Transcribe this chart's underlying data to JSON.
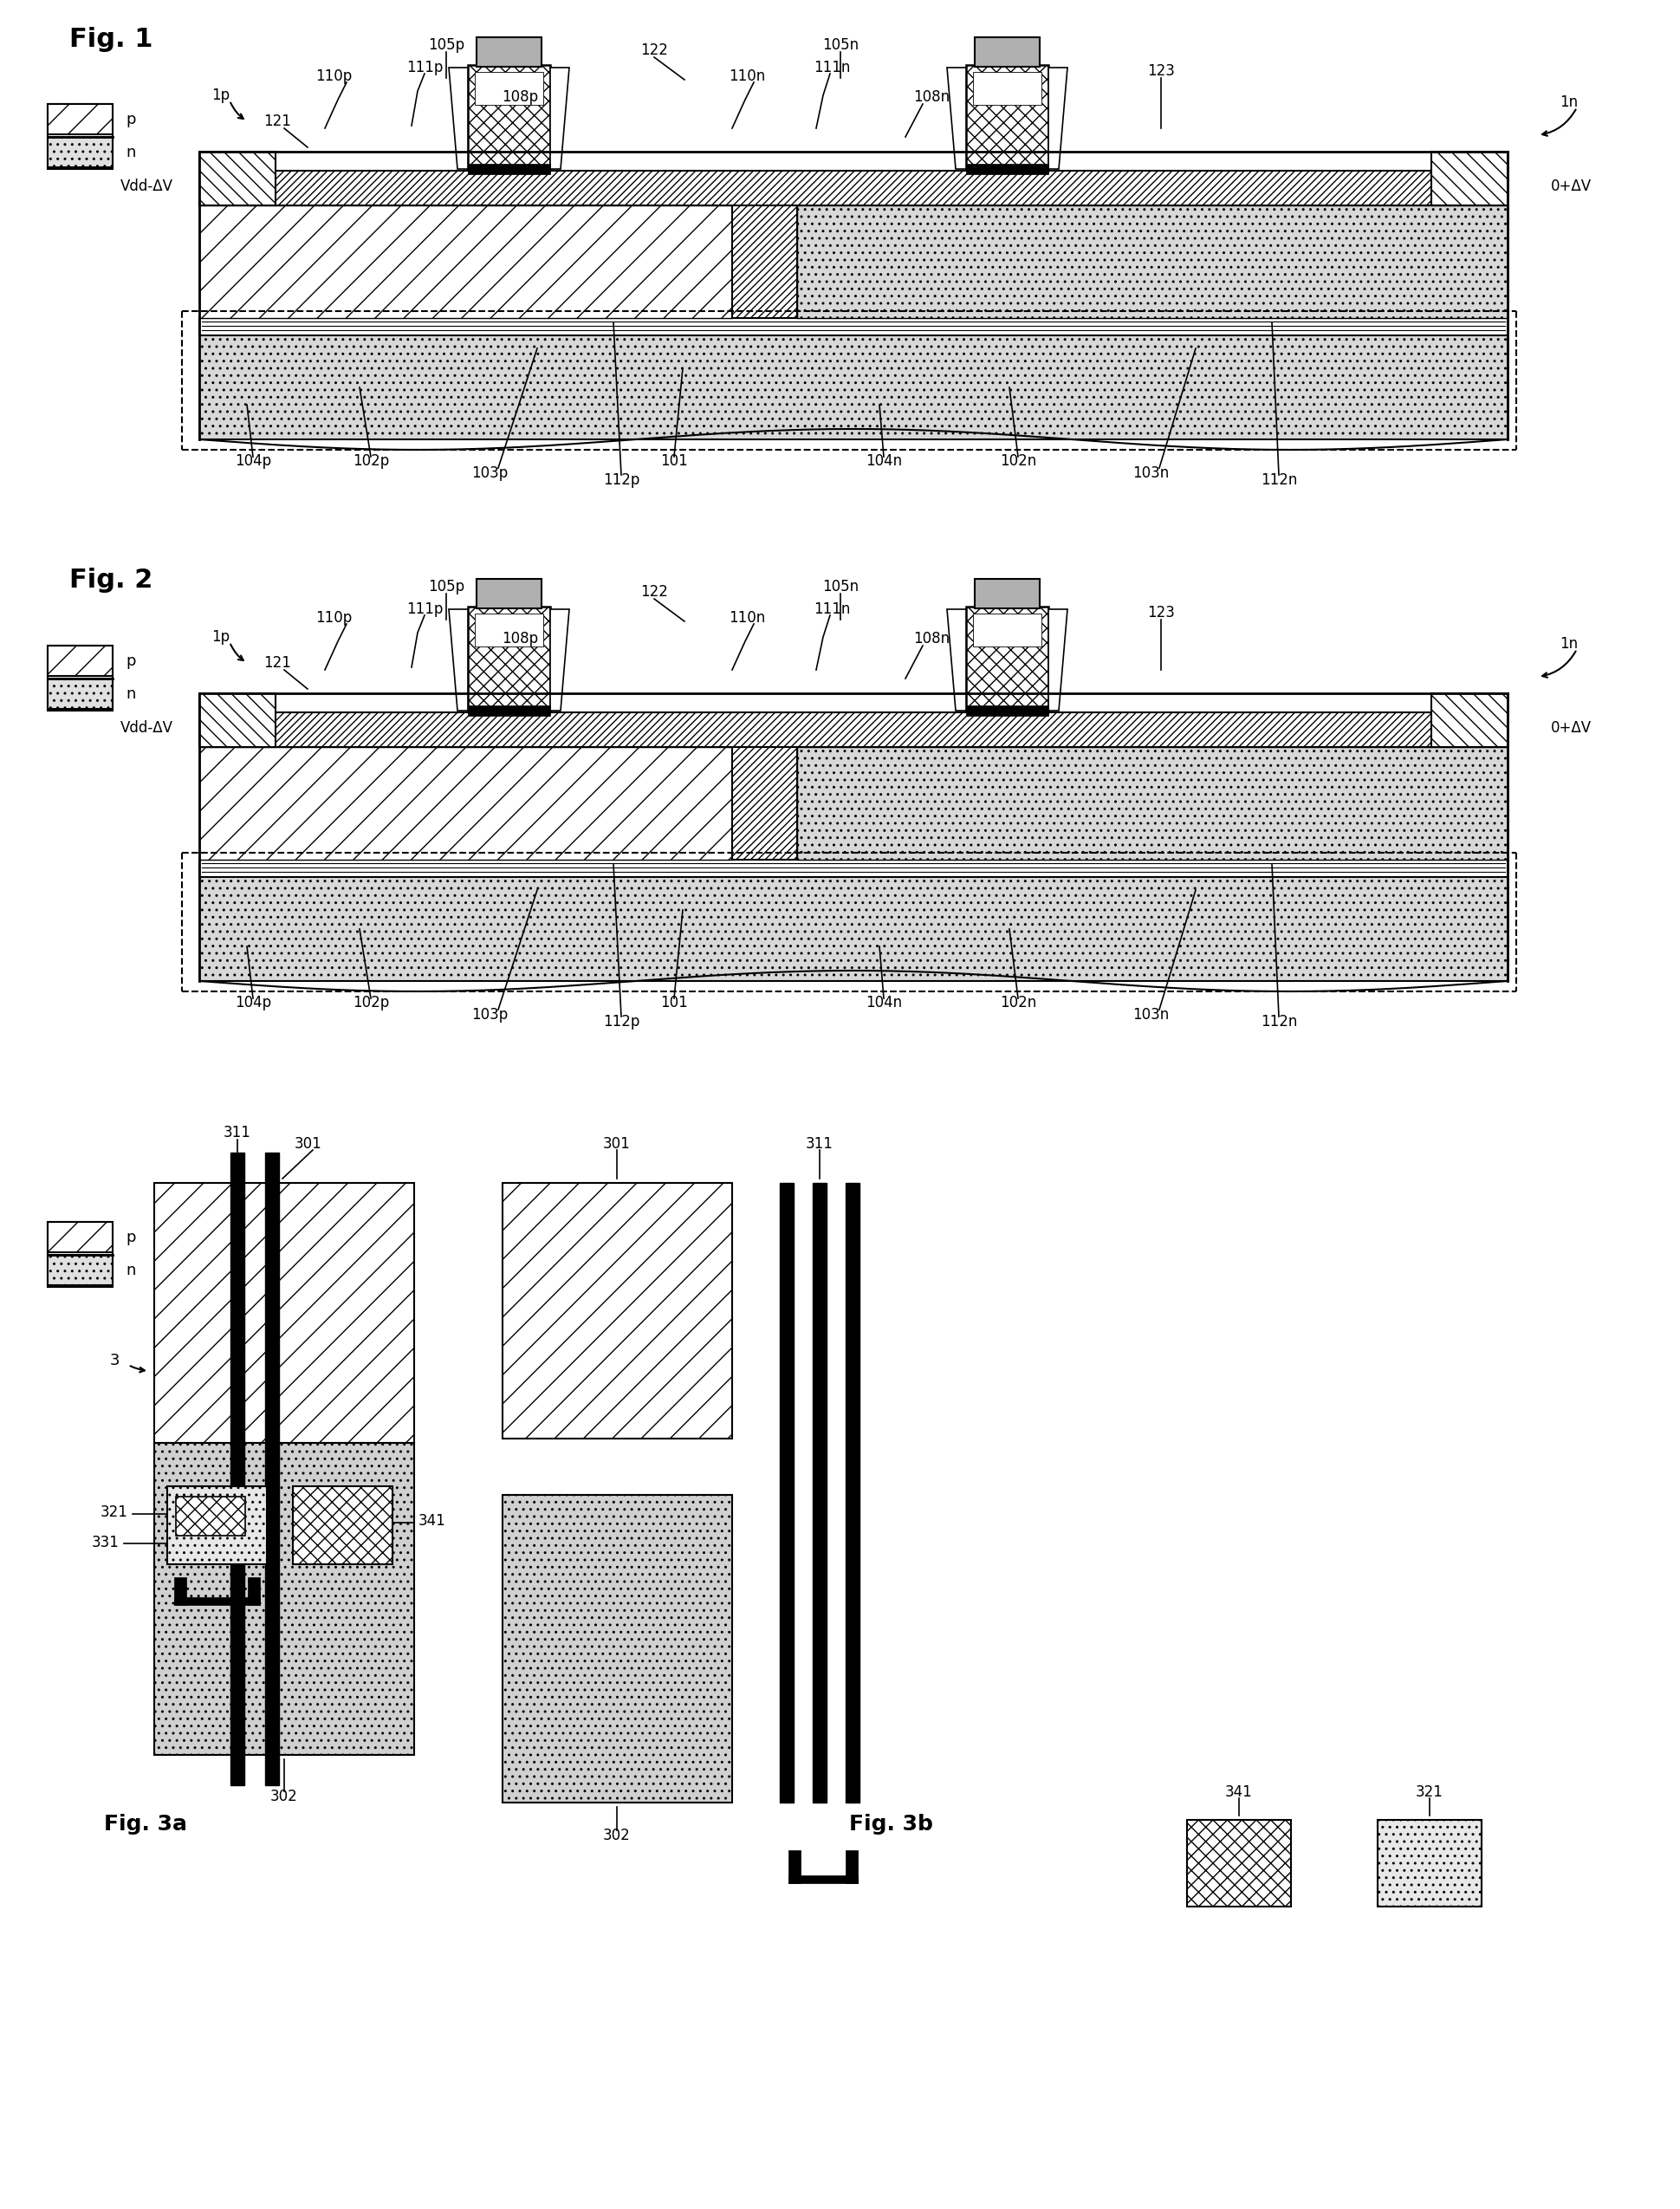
{
  "bg": "#ffffff",
  "fw": 19.4,
  "fh": 25.49,
  "fig1_title": "Fig. 1",
  "fig2_title": "Fig. 2",
  "fig3a_title": "Fig. 3a",
  "fig3b_title": "Fig. 3b"
}
